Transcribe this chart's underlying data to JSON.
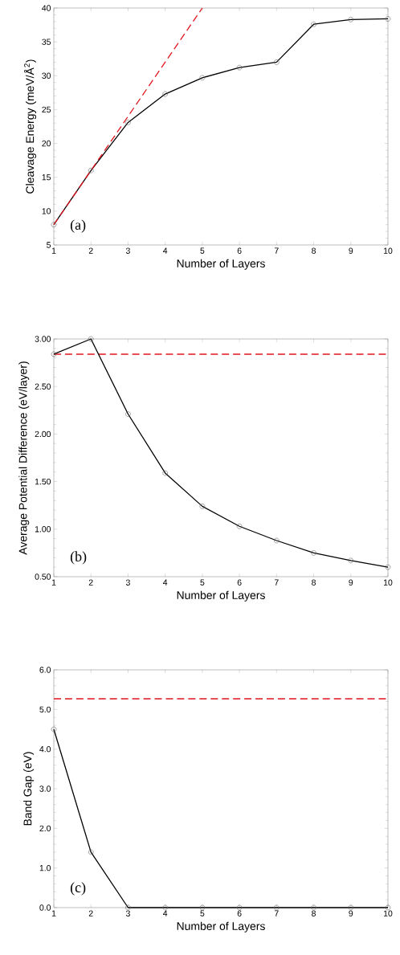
{
  "chart_data": [
    {
      "type": "line",
      "xlabel": "Number of Layers",
      "ylabel": "Cleavage Energy (meV/Å$^{2}$)",
      "annotations": [
        "(a)"
      ],
      "marker": "circle",
      "xlim": [
        1,
        10
      ],
      "xticks": [
        1,
        2,
        3,
        4,
        5,
        6,
        7,
        8,
        9,
        10
      ],
      "ylim": [
        5,
        40
      ],
      "yticks": [
        5,
        10,
        15,
        20,
        25,
        30,
        35,
        40
      ],
      "series": [
        {
          "color": "#000000",
          "x": [
            1,
            2,
            3,
            4,
            5,
            6,
            7,
            8,
            9,
            10
          ],
          "values": [
            8.0,
            16.0,
            23.1,
            27.3,
            29.7,
            31.2,
            32.0,
            37.6,
            38.3,
            38.4
          ]
        },
        {
          "type": "line",
          "color": "#e0141e",
          "line_style": "dashed",
          "marker": "none",
          "x": [
            1,
            5
          ],
          "values": [
            8.0,
            40.0
          ]
        }
      ]
    },
    {
      "type": "line",
      "xlabel": "Number of Layers",
      "ylabel": "Average Potential Difference (eV/layer)",
      "annotations": [
        "(b)"
      ],
      "marker": "circle",
      "xlim": [
        1,
        10
      ],
      "xticks": [
        1,
        2,
        3,
        4,
        5,
        6,
        7,
        8,
        9,
        10
      ],
      "ylim": [
        0.5,
        3.0
      ],
      "yticks": [
        {
          "value": 0.5,
          "label": "0.50"
        },
        {
          "value": 1.0,
          "label": "1.00"
        },
        {
          "value": 1.5,
          "label": "1.50"
        },
        {
          "value": 2.0,
          "label": "2.00"
        },
        {
          "value": 2.5,
          "label": "2.50"
        },
        {
          "value": 3.0,
          "label": "3.00"
        }
      ],
      "series": [
        {
          "color": "#000000",
          "x": [
            1,
            2,
            3,
            4,
            5,
            6,
            7,
            8,
            9,
            10
          ],
          "values": [
            2.84,
            3.0,
            2.21,
            1.59,
            1.24,
            1.03,
            0.88,
            0.75,
            0.67,
            0.6
          ]
        }
      ],
      "ref_lines": [
        {
          "axis": "y",
          "value": 2.84,
          "color": "#e0141e",
          "line_style": "dashed"
        }
      ]
    },
    {
      "type": "line",
      "xlabel": "Number of Layers",
      "ylabel": "Band Gap (eV)",
      "annotations": [
        "(c)"
      ],
      "marker": "circle",
      "xlim": [
        1,
        10
      ],
      "xticks": [
        1,
        2,
        3,
        4,
        5,
        6,
        7,
        8,
        9,
        10
      ],
      "ylim": [
        0,
        6
      ],
      "yticks": [
        {
          "value": 0,
          "label": "0.0"
        },
        {
          "value": 1,
          "label": "1.0"
        },
        {
          "value": 2,
          "label": "2.0"
        },
        {
          "value": 3,
          "label": "3.0"
        },
        {
          "value": 4,
          "label": "4.0"
        },
        {
          "value": 5,
          "label": "5.0"
        },
        {
          "value": 6,
          "label": "6.0"
        }
      ],
      "series": [
        {
          "color": "#000000",
          "x": [
            1,
            2,
            3,
            4,
            5,
            6,
            7,
            8,
            9,
            10
          ],
          "values": [
            4.5,
            1.4,
            0,
            0,
            0,
            0,
            0,
            0,
            0,
            0
          ]
        }
      ],
      "ref_lines": [
        {
          "axis": "y",
          "value": 5.27,
          "color": "#e0141e",
          "line_style": "dashed"
        }
      ]
    }
  ]
}
